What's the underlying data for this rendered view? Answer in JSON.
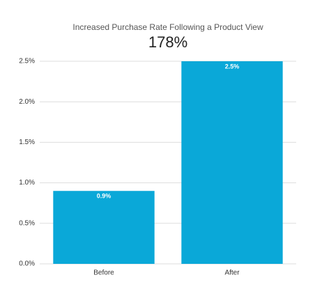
{
  "chart_data": {
    "type": "bar",
    "title": "Increased Purchase Rate Following a Product View",
    "subtitle": "178%",
    "categories": [
      "Before",
      "After"
    ],
    "values": [
      0.9,
      2.5
    ],
    "value_labels": [
      "0.9%",
      "2.5%"
    ],
    "color": "#0aa8d8",
    "ylim": [
      0,
      2.5
    ],
    "yticks": [
      {
        "value": 0,
        "label": "0.0%"
      },
      {
        "value": 0.5,
        "label": "0.5%"
      },
      {
        "value": 1,
        "label": "1.0%"
      },
      {
        "value": 1.5,
        "label": "1.5%"
      },
      {
        "value": 2,
        "label": "2.0%"
      },
      {
        "value": 2.5,
        "label": "2.5%"
      }
    ],
    "grid": true
  }
}
